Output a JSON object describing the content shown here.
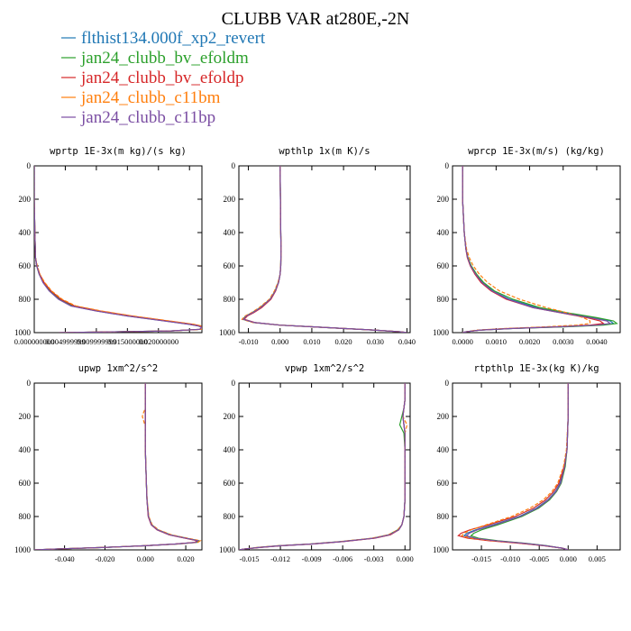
{
  "title": "CLUBB VAR at280E,-2N",
  "legend": [
    {
      "label": "flthist134.000f_xp2_revert",
      "color": "#1f77b4"
    },
    {
      "label": "jan24_clubb_bv_efoldm",
      "color": "#2ca02c"
    },
    {
      "label": "jan24_clubb_bv_efoldp",
      "color": "#d62728"
    },
    {
      "label": "jan24_clubb_c11bm",
      "color": "#ff7f0e"
    },
    {
      "label": "jan24_clubb_c11bp",
      "color": "#7b4ea3"
    }
  ],
  "chart_data": [
    {
      "type": "line",
      "title": "wprtp  1E-3x(m kg)/(s kg)",
      "ylim": [
        0,
        1000
      ],
      "y_inverted": true,
      "xlim": [
        0,
        0.027
      ],
      "xticks": [
        0.0,
        0.005,
        0.01,
        0.015,
        0.02,
        0.025
      ],
      "xticklabels": [
        "0.000000000",
        "0.004999999",
        "0.009999999",
        "0.015000000",
        "0.020000000",
        ""
      ],
      "yticks": [
        0,
        200,
        400,
        600,
        800,
        1000
      ],
      "y": [
        0,
        200,
        400,
        550,
        600,
        650,
        700,
        750,
        800,
        840,
        870,
        900,
        930,
        950,
        960,
        970,
        980,
        990,
        1000
      ],
      "series": [
        {
          "values": [
            0,
            0,
            0.0001,
            0.0002,
            0.0004,
            0.0008,
            0.0015,
            0.0025,
            0.004,
            0.006,
            0.01,
            0.015,
            0.021,
            0.025,
            0.0265,
            0.027,
            0.027,
            0.022,
            0.004
          ]
        },
        {
          "values": [
            0,
            0,
            0.0001,
            0.0002,
            0.0004,
            0.0008,
            0.0015,
            0.0026,
            0.0042,
            0.0063,
            0.0102,
            0.0153,
            0.0213,
            0.0252,
            0.0266,
            0.027,
            0.0268,
            0.022,
            0.004
          ]
        },
        {
          "values": [
            0,
            0,
            0.0001,
            0.0002,
            0.0004,
            0.0009,
            0.0016,
            0.0027,
            0.0043,
            0.0065,
            0.0105,
            0.0156,
            0.0216,
            0.0255,
            0.0268,
            0.027,
            0.0268,
            0.022,
            0.004
          ]
        },
        {
          "values": [
            0,
            0,
            0.0001,
            0.0002,
            0.0005,
            0.0009,
            0.0017,
            0.0028,
            0.0045,
            0.0067,
            0.0108,
            0.0158,
            0.0218,
            0.0257,
            0.0269,
            0.027,
            0.0269,
            0.022,
            0.004
          ]
        },
        {
          "values": [
            0,
            0,
            0.0001,
            0.0002,
            0.0004,
            0.0008,
            0.0014,
            0.0024,
            0.0039,
            0.0059,
            0.0099,
            0.0149,
            0.0209,
            0.0249,
            0.0264,
            0.027,
            0.0266,
            0.022,
            0.004
          ]
        }
      ]
    },
    {
      "type": "line",
      "title": "wpthlp  1x(m K)/s",
      "ylim": [
        0,
        1000
      ],
      "y_inverted": true,
      "xlim": [
        -0.013,
        0.041
      ],
      "xticks": [
        -0.01,
        0.0,
        0.01,
        0.02,
        0.03,
        0.04
      ],
      "xticklabels": [
        "-0.010",
        "0.000",
        "0.010",
        "0.020",
        "0.030",
        "0.040"
      ],
      "yticks": [
        0,
        200,
        400,
        600,
        800,
        1000
      ],
      "y": [
        0,
        200,
        400,
        500,
        600,
        650,
        700,
        750,
        800,
        850,
        880,
        900,
        920,
        940,
        955,
        965,
        975,
        985,
        995,
        1000
      ],
      "series": [
        {
          "values": [
            0,
            0.0001,
            0.0002,
            0.0003,
            0.0002,
            0.0,
            -0.0005,
            -0.0015,
            -0.003,
            -0.006,
            -0.0085,
            -0.0105,
            -0.0115,
            -0.008,
            0.0,
            0.01,
            0.02,
            0.03,
            0.038,
            0.04
          ]
        },
        {
          "values": [
            0,
            0.0001,
            0.0002,
            0.0003,
            0.0002,
            0.0,
            -0.0006,
            -0.0016,
            -0.0032,
            -0.0063,
            -0.0088,
            -0.0108,
            -0.0118,
            -0.0082,
            0.0,
            0.01,
            0.02,
            0.03,
            0.038,
            0.04
          ]
        },
        {
          "values": [
            0,
            0.0001,
            0.0002,
            0.0003,
            0.0002,
            0.0,
            -0.0005,
            -0.0014,
            -0.0029,
            -0.0058,
            -0.0083,
            -0.0103,
            -0.0113,
            -0.0078,
            0.0,
            0.01,
            0.02,
            0.03,
            0.038,
            0.04
          ]
        },
        {
          "values": [
            0,
            0.0001,
            0.0002,
            0.0003,
            0.0002,
            0.0,
            -0.0007,
            -0.0018,
            -0.0034,
            -0.0066,
            -0.009,
            -0.011,
            -0.012,
            -0.0085,
            0.0,
            0.01,
            0.02,
            0.03,
            0.038,
            0.04
          ]
        },
        {
          "values": [
            0,
            0.0001,
            0.0002,
            0.0003,
            0.0002,
            0.0,
            -0.0005,
            -0.0015,
            -0.0031,
            -0.0061,
            -0.0086,
            -0.0106,
            -0.0116,
            -0.008,
            0.0,
            0.01,
            0.02,
            0.03,
            0.038,
            0.04
          ]
        }
      ]
    },
    {
      "type": "line",
      "title": "wprcp  1E-3x(m/s) (kg/kg)",
      "ylim": [
        0,
        1000
      ],
      "y_inverted": true,
      "xlim": [
        -0.0003,
        0.0047
      ],
      "xticks": [
        0.0,
        0.001,
        0.002,
        0.003,
        0.004
      ],
      "xticklabels": [
        "0.0000",
        "0.0010",
        "0.0020",
        "0.0030",
        "0.0040"
      ],
      "yticks": [
        0,
        200,
        400,
        600,
        800,
        1000
      ],
      "y": [
        0,
        200,
        400,
        500,
        550,
        600,
        650,
        700,
        750,
        800,
        850,
        880,
        910,
        930,
        945,
        955,
        965,
        975,
        985,
        995,
        1000
      ],
      "series": [
        {
          "values": [
            0,
            0,
            5e-05,
            0.0001,
            0.00015,
            0.00025,
            0.0004,
            0.0006,
            0.0009,
            0.0014,
            0.0022,
            0.003,
            0.0039,
            0.0044,
            0.0045,
            0.0041,
            0.003,
            0.0015,
            0.0005,
            0.0001,
            0
          ]
        },
        {
          "values": [
            0,
            0,
            5e-05,
            0.0001,
            0.00016,
            0.00026,
            0.00042,
            0.00063,
            0.00095,
            0.0015,
            0.0023,
            0.0031,
            0.004,
            0.0045,
            0.0046,
            0.0042,
            0.0031,
            0.0015,
            0.0005,
            0.0001,
            0
          ]
        },
        {
          "values": [
            0,
            0,
            5e-05,
            0.0001,
            0.00014,
            0.00023,
            0.00037,
            0.00055,
            0.00085,
            0.0013,
            0.0021,
            0.0029,
            0.0037,
            0.0041,
            0.0042,
            0.0038,
            0.0028,
            0.0014,
            0.0005,
            0.0001,
            0
          ]
        },
        {
          "values": [
            0,
            0,
            5e-05,
            0.00012,
            0.0002,
            0.00032,
            0.0005,
            0.00075,
            0.0011,
            0.0017,
            0.0025,
            0.0031,
            0.0036,
            0.0038,
            0.0038,
            0.0034,
            0.0025,
            0.0013,
            0.0004,
            0.0001,
            0
          ]
        },
        {
          "values": [
            0,
            0,
            5e-05,
            0.0001,
            0.00015,
            0.00024,
            0.00039,
            0.00058,
            0.00088,
            0.00135,
            0.0021,
            0.0029,
            0.0038,
            0.0043,
            0.0044,
            0.004,
            0.0029,
            0.0015,
            0.0005,
            0.0001,
            0
          ]
        }
      ]
    },
    {
      "type": "line",
      "title": "upwp  1xm^2/s^2",
      "ylim": [
        0,
        1000
      ],
      "y_inverted": true,
      "xlim": [
        -0.055,
        0.028
      ],
      "xticks": [
        -0.04,
        -0.02,
        0.0,
        0.02
      ],
      "xticklabels": [
        "-0.040",
        "-0.020",
        "0.000",
        "0.020"
      ],
      "yticks": [
        0,
        200,
        400,
        600,
        800,
        1000
      ],
      "y": [
        0,
        150,
        180,
        200,
        220,
        260,
        400,
        600,
        700,
        800,
        850,
        880,
        910,
        930,
        945,
        955,
        965,
        975,
        985,
        995,
        1000
      ],
      "series": [
        {
          "values": [
            0,
            0,
            0.0,
            0.0,
            0.0,
            0.0,
            0.0,
            0.0005,
            0.0008,
            0.0015,
            0.003,
            0.006,
            0.012,
            0.02,
            0.026,
            0.025,
            0.015,
            0.0,
            -0.02,
            -0.045,
            -0.055
          ]
        },
        {
          "values": [
            0,
            0,
            0.0,
            0.0,
            0.0,
            0.0,
            0.0,
            0.0005,
            0.0008,
            0.0016,
            0.0032,
            0.0063,
            0.0125,
            0.0205,
            0.0265,
            0.0255,
            0.0155,
            0.0,
            -0.02,
            -0.045,
            -0.055
          ]
        },
        {
          "values": [
            0,
            0,
            0.0,
            0.0,
            0.0,
            0.0,
            0.0,
            0.0005,
            0.0008,
            0.0014,
            0.0029,
            0.0058,
            0.0117,
            0.0196,
            0.0255,
            0.0245,
            0.0145,
            0.0,
            -0.02,
            -0.045,
            -0.055
          ]
        },
        {
          "values": [
            0,
            0,
            -0.001,
            -0.0015,
            -0.001,
            0.0,
            0.0,
            0.0005,
            0.0009,
            0.0017,
            0.0034,
            0.0066,
            0.013,
            0.021,
            0.0272,
            0.026,
            0.016,
            0.0,
            -0.02,
            -0.045,
            -0.055
          ]
        },
        {
          "values": [
            0,
            0,
            0.0,
            0.0,
            0.0,
            0.0,
            0.0,
            0.0005,
            0.0008,
            0.0015,
            0.003,
            0.006,
            0.012,
            0.02,
            0.026,
            0.025,
            0.015,
            0.0,
            -0.02,
            -0.045,
            -0.055
          ]
        }
      ]
    },
    {
      "type": "line",
      "title": "vpwp  1xm^2/s^2",
      "ylim": [
        0,
        1000
      ],
      "y_inverted": true,
      "xlim": [
        -0.016,
        0.0005
      ],
      "xticks": [
        -0.015,
        -0.012,
        -0.009,
        -0.006,
        -0.003,
        0.0
      ],
      "xticklabels": [
        "-0.015",
        "-0.012",
        "-0.009",
        "-0.006",
        "-0.003",
        "0.000"
      ],
      "yticks": [
        0,
        200,
        400,
        600,
        800,
        1000
      ],
      "y": [
        0,
        100,
        150,
        200,
        250,
        300,
        400,
        600,
        700,
        800,
        850,
        880,
        910,
        930,
        950,
        965,
        975,
        985,
        995,
        1000
      ],
      "series": [
        {
          "values": [
            0,
            0,
            -0.0001,
            -0.0002,
            -0.0001,
            0.0,
            0.0,
            0.0,
            0.0,
            -0.0001,
            -0.0003,
            -0.0006,
            -0.0015,
            -0.003,
            -0.006,
            -0.009,
            -0.012,
            -0.014,
            -0.0155,
            -0.016
          ]
        },
        {
          "values": [
            0,
            0,
            -0.0001,
            -0.0003,
            -0.0005,
            -0.0001,
            0.0,
            0.0,
            0.0,
            -0.0001,
            -0.0003,
            -0.0007,
            -0.0016,
            -0.0031,
            -0.0061,
            -0.0091,
            -0.0121,
            -0.0141,
            -0.0155,
            -0.016
          ]
        },
        {
          "values": [
            0,
            0,
            -0.0001,
            -0.0002,
            -0.0001,
            0.0,
            0.0,
            0.0,
            0.0,
            -0.0001,
            -0.0003,
            -0.0006,
            -0.0014,
            -0.0029,
            -0.0059,
            -0.0089,
            -0.0119,
            -0.0139,
            -0.0155,
            -0.016
          ]
        },
        {
          "values": [
            0,
            0,
            -0.0001,
            -0.0002,
            0.0002,
            0.0,
            0.0,
            0.0,
            0.0,
            -0.0001,
            -0.0003,
            -0.0007,
            -0.0016,
            -0.0032,
            -0.0062,
            -0.0092,
            -0.0122,
            -0.0142,
            -0.0155,
            -0.016
          ]
        },
        {
          "values": [
            0,
            0,
            -0.0001,
            -0.0002,
            -0.0001,
            0.0,
            0.0,
            0.0,
            0.0,
            -0.0001,
            -0.0003,
            -0.0006,
            -0.0015,
            -0.003,
            -0.006,
            -0.009,
            -0.012,
            -0.014,
            -0.0155,
            -0.016
          ]
        }
      ]
    },
    {
      "type": "line",
      "title": "rtpthlp  1E-3x(kg K)/kg",
      "ylim": [
        0,
        1000
      ],
      "y_inverted": true,
      "xlim": [
        -0.02,
        0.009
      ],
      "xticks": [
        -0.015,
        -0.01,
        -0.005,
        0.0,
        0.005
      ],
      "xticklabels": [
        "-0.015",
        "-0.010",
        "-0.005",
        "0.000",
        "0.005"
      ],
      "yticks": [
        0,
        200,
        400,
        600,
        800,
        1000
      ],
      "y": [
        0,
        200,
        400,
        500,
        600,
        650,
        700,
        750,
        800,
        850,
        880,
        900,
        915,
        930,
        945,
        960,
        975,
        990,
        1000
      ],
      "series": [
        {
          "values": [
            0,
            0,
            -0.0002,
            -0.0006,
            -0.0014,
            -0.0022,
            -0.0035,
            -0.0055,
            -0.0085,
            -0.013,
            -0.016,
            -0.0175,
            -0.018,
            -0.0165,
            -0.013,
            -0.008,
            -0.004,
            -0.001,
            0
          ]
        },
        {
          "values": [
            0,
            0,
            -0.0002,
            -0.0005,
            -0.0012,
            -0.002,
            -0.0032,
            -0.0051,
            -0.008,
            -0.0122,
            -0.015,
            -0.0163,
            -0.0168,
            -0.0155,
            -0.0122,
            -0.0075,
            -0.0037,
            -0.001,
            0
          ]
        },
        {
          "values": [
            0,
            0,
            -0.0002,
            -0.0007,
            -0.0016,
            -0.0025,
            -0.0039,
            -0.006,
            -0.0092,
            -0.0138,
            -0.017,
            -0.0185,
            -0.019,
            -0.0174,
            -0.0138,
            -0.0085,
            -0.0042,
            -0.001,
            0
          ]
        },
        {
          "values": [
            0,
            0,
            -0.0003,
            -0.0008,
            -0.0018,
            -0.0028,
            -0.0043,
            -0.0066,
            -0.0098,
            -0.0142,
            -0.0168,
            -0.018,
            -0.0184,
            -0.0168,
            -0.0132,
            -0.0082,
            -0.004,
            -0.001,
            0
          ]
        },
        {
          "values": [
            0,
            0,
            -0.0002,
            -0.0006,
            -0.0013,
            -0.0021,
            -0.0034,
            -0.0053,
            -0.0083,
            -0.0127,
            -0.0157,
            -0.0171,
            -0.0176,
            -0.0161,
            -0.0127,
            -0.0078,
            -0.0039,
            -0.001,
            0
          ]
        }
      ]
    }
  ]
}
